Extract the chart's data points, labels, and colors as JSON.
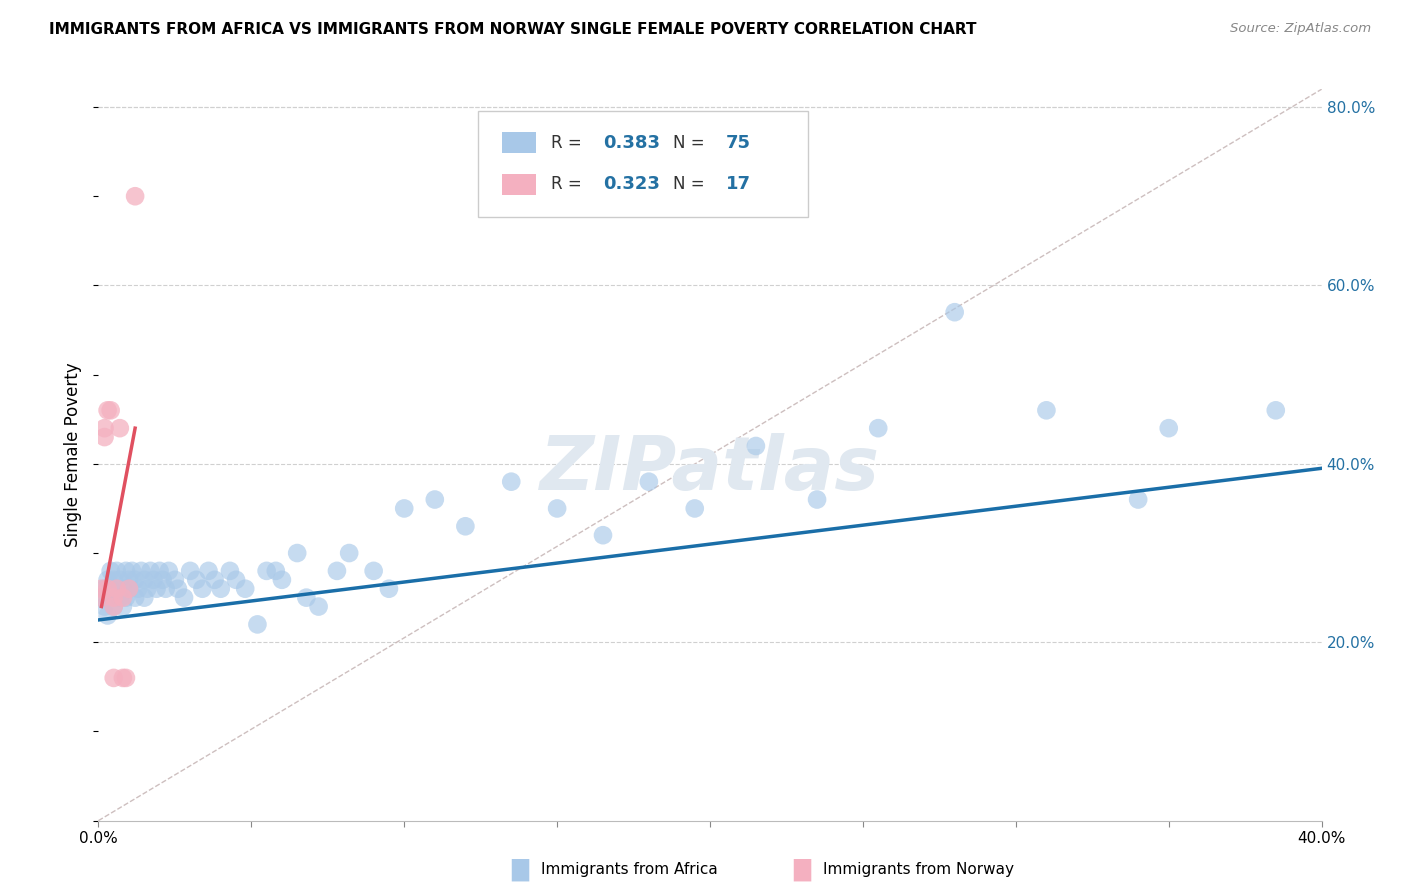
{
  "title": "IMMIGRANTS FROM AFRICA VS IMMIGRANTS FROM NORWAY SINGLE FEMALE POVERTY CORRELATION CHART",
  "source": "Source: ZipAtlas.com",
  "ylabel": "Single Female Poverty",
  "xmin": 0.0,
  "xmax": 0.4,
  "ymin": 0.0,
  "ymax": 0.82,
  "xticks": [
    0.0,
    0.05,
    0.1,
    0.15,
    0.2,
    0.25,
    0.3,
    0.35,
    0.4
  ],
  "xticklabels": [
    "0.0%",
    "",
    "",
    "",
    "",
    "",
    "",
    "",
    "40.0%"
  ],
  "yticks_right": [
    0.2,
    0.4,
    0.6,
    0.8
  ],
  "yticklabels_right": [
    "20.0%",
    "40.0%",
    "60.0%",
    "80.0%"
  ],
  "color_africa": "#a8c8e8",
  "color_norway": "#f4b0c0",
  "color_africa_line": "#1a6ea8",
  "color_norway_line": "#e05060",
  "color_diagonal": "#c8b0b0",
  "watermark": "ZIPatlas",
  "africa_x": [
    0.001,
    0.002,
    0.002,
    0.003,
    0.003,
    0.003,
    0.004,
    0.004,
    0.005,
    0.005,
    0.005,
    0.006,
    0.006,
    0.007,
    0.007,
    0.008,
    0.008,
    0.009,
    0.009,
    0.01,
    0.01,
    0.011,
    0.012,
    0.012,
    0.013,
    0.014,
    0.015,
    0.015,
    0.016,
    0.017,
    0.018,
    0.019,
    0.02,
    0.021,
    0.022,
    0.023,
    0.025,
    0.026,
    0.028,
    0.03,
    0.032,
    0.034,
    0.036,
    0.038,
    0.04,
    0.043,
    0.045,
    0.048,
    0.052,
    0.055,
    0.058,
    0.06,
    0.065,
    0.068,
    0.072,
    0.078,
    0.082,
    0.09,
    0.095,
    0.1,
    0.11,
    0.12,
    0.135,
    0.15,
    0.165,
    0.18,
    0.195,
    0.215,
    0.235,
    0.255,
    0.28,
    0.31,
    0.34,
    0.35,
    0.385
  ],
  "africa_y": [
    0.25,
    0.26,
    0.24,
    0.27,
    0.25,
    0.23,
    0.28,
    0.26,
    0.25,
    0.27,
    0.24,
    0.26,
    0.28,
    0.25,
    0.27,
    0.26,
    0.24,
    0.25,
    0.28,
    0.27,
    0.26,
    0.28,
    0.25,
    0.27,
    0.26,
    0.28,
    0.27,
    0.25,
    0.26,
    0.28,
    0.27,
    0.26,
    0.28,
    0.27,
    0.26,
    0.28,
    0.27,
    0.26,
    0.25,
    0.28,
    0.27,
    0.26,
    0.28,
    0.27,
    0.26,
    0.28,
    0.27,
    0.26,
    0.22,
    0.28,
    0.28,
    0.27,
    0.3,
    0.25,
    0.24,
    0.28,
    0.3,
    0.28,
    0.26,
    0.35,
    0.36,
    0.33,
    0.38,
    0.35,
    0.32,
    0.38,
    0.35,
    0.42,
    0.36,
    0.44,
    0.57,
    0.46,
    0.36,
    0.44,
    0.46
  ],
  "norway_x": [
    0.001,
    0.001,
    0.002,
    0.002,
    0.003,
    0.003,
    0.004,
    0.005,
    0.005,
    0.005,
    0.006,
    0.007,
    0.008,
    0.008,
    0.009,
    0.01,
    0.012
  ],
  "norway_y": [
    0.26,
    0.25,
    0.44,
    0.43,
    0.26,
    0.46,
    0.46,
    0.25,
    0.24,
    0.16,
    0.26,
    0.44,
    0.25,
    0.16,
    0.16,
    0.26,
    0.7
  ],
  "africa_line_x0": 0.0,
  "africa_line_x1": 0.4,
  "africa_line_y0": 0.225,
  "africa_line_y1": 0.395,
  "norway_line_x0": 0.001,
  "norway_line_x1": 0.012,
  "norway_line_y0": 0.24,
  "norway_line_y1": 0.44
}
